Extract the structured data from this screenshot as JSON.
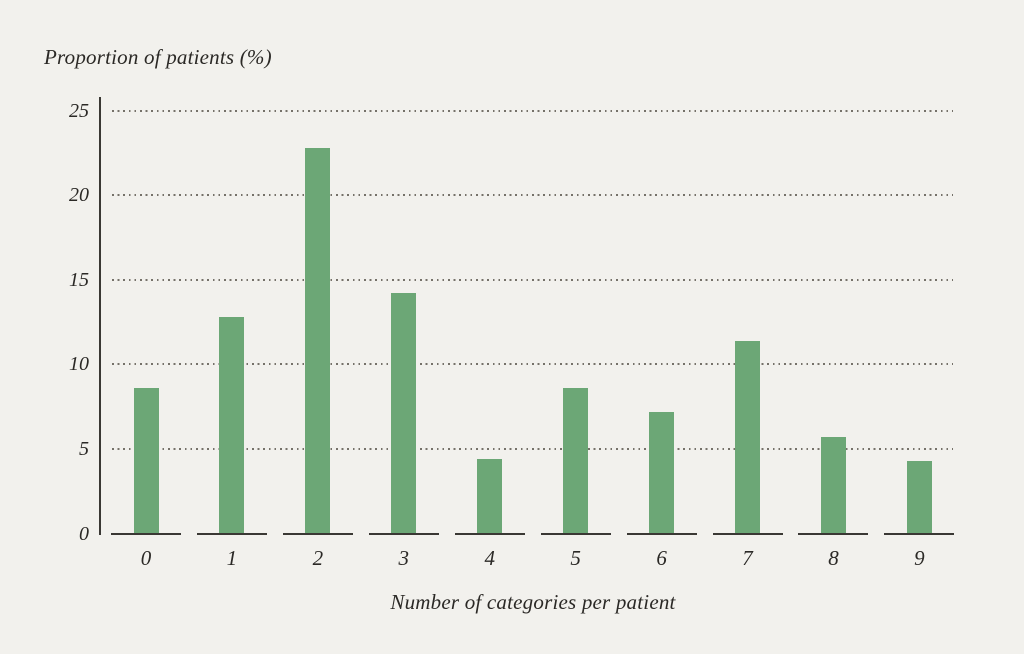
{
  "figure": {
    "background_color": "#f2f1ed"
  },
  "chart_data": {
    "type": "bar",
    "title": "",
    "ylabel": "Proportion of patients (%)",
    "xlabel": "Number of categories per patient",
    "categories": [
      "0",
      "1",
      "2",
      "3",
      "4",
      "5",
      "6",
      "7",
      "8",
      "9"
    ],
    "values": [
      8.6,
      12.8,
      22.8,
      14.2,
      4.4,
      8.6,
      7.2,
      11.4,
      5.7,
      4.3
    ],
    "yticks": [
      0,
      5,
      10,
      15,
      20,
      25
    ],
    "ylim": [
      0,
      25
    ],
    "grid": "horizontal-dotted",
    "legend_position": "none",
    "ylabel_position": "top-left",
    "bar_color": "#6ca776",
    "axis_color": "#3a3834",
    "gridline_color": "#757169",
    "text_color": "#2b2926",
    "background_color": "#f2f1ed"
  }
}
